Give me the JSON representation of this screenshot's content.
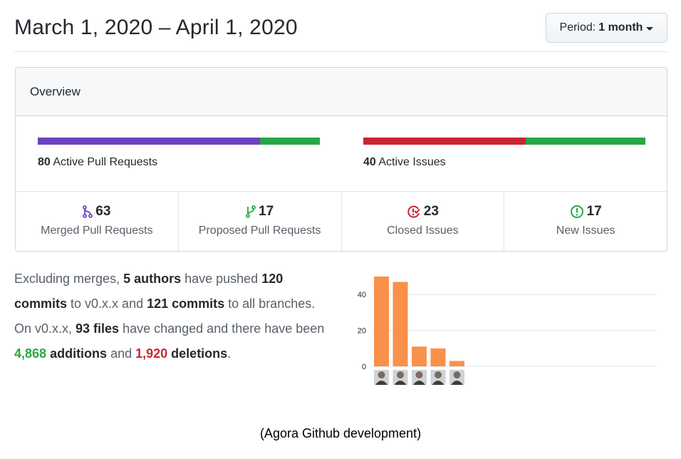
{
  "header": {
    "title": "March 1, 2020 – April 1, 2020",
    "period_label": "Period:",
    "period_value": "1 month"
  },
  "overview": {
    "title": "Overview",
    "pull_requests": {
      "count": "80",
      "label": "Active Pull Requests",
      "merged_fraction": 0.7875,
      "colors": {
        "merged": "#6f42c1",
        "open": "#28a745"
      }
    },
    "issues": {
      "count": "40",
      "label": "Active Issues",
      "closed_fraction": 0.575,
      "colors": {
        "closed": "#cb2431",
        "new": "#28a745"
      }
    },
    "stats": [
      {
        "icon": "git-merge-icon",
        "count": "63",
        "label": "Merged Pull Requests",
        "color": "#6f42c1"
      },
      {
        "icon": "git-pull-request-icon",
        "count": "17",
        "label": "Proposed Pull Requests",
        "color": "#28a745"
      },
      {
        "icon": "issue-closed-icon",
        "count": "23",
        "label": "Closed Issues",
        "color": "#cb2431"
      },
      {
        "icon": "issue-opened-icon",
        "count": "17",
        "label": "New Issues",
        "color": "#28a745"
      }
    ]
  },
  "summary": {
    "p1": "Excluding merges, ",
    "authors": "5 authors",
    "p2": " have pushed ",
    "commits_branch": "120 commits",
    "p3": " to v0.x.x and ",
    "commits_all": "121 commits",
    "p4": " to all branches. On v0.x.x, ",
    "files": "93 files",
    "p5": " have changed and there have been ",
    "additions": "4,868",
    "p6": " ",
    "additions_word": "additions",
    "p7": " and ",
    "deletions": "1,920",
    "p8": " ",
    "deletions_word": "deletions",
    "p9": "."
  },
  "chart_data": {
    "type": "bar",
    "categories": [
      "author-1",
      "author-2",
      "author-3",
      "author-4",
      "author-5"
    ],
    "values": [
      50,
      47,
      11,
      10,
      3
    ],
    "ylim": [
      0,
      50
    ],
    "yticks": [
      "0",
      "20",
      "40"
    ],
    "bar_color": "#f9914b",
    "grid": true
  },
  "caption": "(Agora Github development)"
}
